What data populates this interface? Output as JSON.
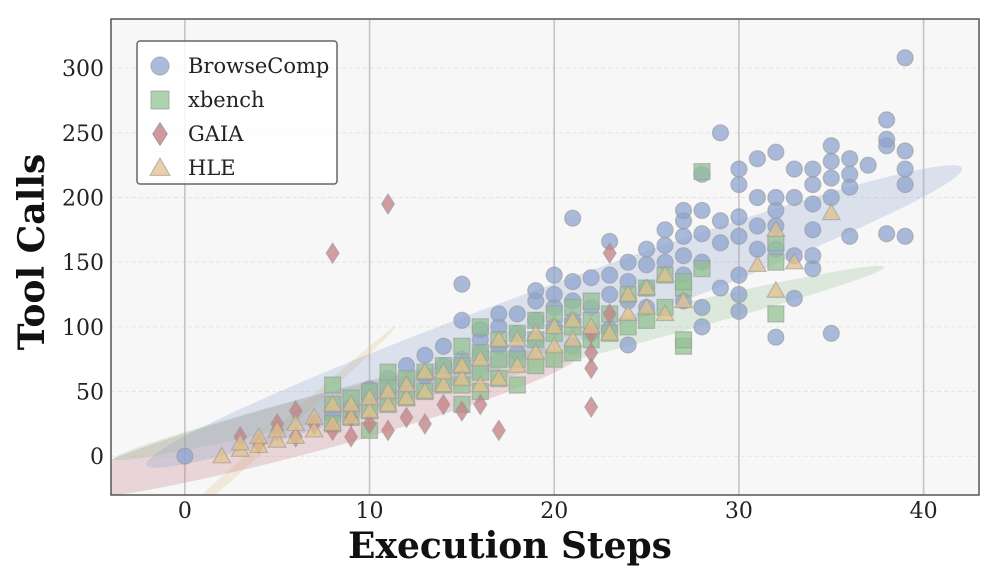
{
  "chart_data": {
    "type": "scatter",
    "xlabel": "Execution Steps",
    "ylabel": "Tool Calls",
    "xlim": [
      -4,
      43
    ],
    "ylim": [
      -30,
      338
    ],
    "xticks": [
      0,
      10,
      20,
      30,
      40
    ],
    "yticks": [
      0,
      50,
      100,
      150,
      200,
      250,
      300
    ],
    "grid": "vertical",
    "legend_position": "top-left",
    "series": [
      {
        "name": "BrowseComp",
        "marker": "circle",
        "color": "#8ea4cf",
        "ellipse": {
          "cx": 20,
          "cy": 108,
          "rx": 23.5,
          "ry": 24,
          "angle": 20
        },
        "points": [
          [
            0,
            0
          ],
          [
            8,
            32
          ],
          [
            9,
            38
          ],
          [
            10,
            45
          ],
          [
            10,
            52
          ],
          [
            11,
            48
          ],
          [
            11,
            60
          ],
          [
            12,
            55
          ],
          [
            12,
            70
          ],
          [
            13,
            62
          ],
          [
            13,
            78
          ],
          [
            14,
            70
          ],
          [
            14,
            85
          ],
          [
            15,
            75
          ],
          [
            15,
            105
          ],
          [
            15,
            133
          ],
          [
            16,
            80
          ],
          [
            16,
            90
          ],
          [
            16,
            98
          ],
          [
            17,
            85
          ],
          [
            17,
            100
          ],
          [
            17,
            110
          ],
          [
            18,
            80
          ],
          [
            18,
            95
          ],
          [
            18,
            110
          ],
          [
            19,
            90
          ],
          [
            19,
            105
          ],
          [
            19,
            120
          ],
          [
            19,
            128
          ],
          [
            20,
            100
          ],
          [
            20,
            115
          ],
          [
            20,
            125
          ],
          [
            20,
            140
          ],
          [
            21,
            85
          ],
          [
            21,
            105
          ],
          [
            21,
            120
          ],
          [
            21,
            135
          ],
          [
            21,
            184
          ],
          [
            22,
            95
          ],
          [
            22,
            115
          ],
          [
            22,
            138
          ],
          [
            23,
            98
          ],
          [
            23,
            125
          ],
          [
            23,
            140
          ],
          [
            23,
            166
          ],
          [
            24,
            86
          ],
          [
            24,
            120
          ],
          [
            24,
            135
          ],
          [
            24,
            150
          ],
          [
            25,
            115
          ],
          [
            25,
            130
          ],
          [
            25,
            148
          ],
          [
            25,
            160
          ],
          [
            26,
            150
          ],
          [
            26,
            163
          ],
          [
            26,
            175
          ],
          [
            27,
            120
          ],
          [
            27,
            140
          ],
          [
            27,
            155
          ],
          [
            27,
            170
          ],
          [
            27,
            182
          ],
          [
            27,
            190
          ],
          [
            28,
            100
          ],
          [
            28,
            115
          ],
          [
            28,
            150
          ],
          [
            28,
            172
          ],
          [
            28,
            190
          ],
          [
            28,
            218
          ],
          [
            29,
            130
          ],
          [
            29,
            165
          ],
          [
            29,
            182
          ],
          [
            29,
            250
          ],
          [
            30,
            112
          ],
          [
            30,
            125
          ],
          [
            30,
            140
          ],
          [
            30,
            170
          ],
          [
            30,
            185
          ],
          [
            30,
            210
          ],
          [
            30,
            222
          ],
          [
            31,
            160
          ],
          [
            31,
            178
          ],
          [
            31,
            200
          ],
          [
            31,
            230
          ],
          [
            32,
            92
          ],
          [
            32,
            160
          ],
          [
            32,
            178
          ],
          [
            32,
            190
          ],
          [
            32,
            200
          ],
          [
            32,
            235
          ],
          [
            33,
            122
          ],
          [
            33,
            155
          ],
          [
            33,
            200
          ],
          [
            33,
            222
          ],
          [
            34,
            145
          ],
          [
            34,
            155
          ],
          [
            34,
            175
          ],
          [
            34,
            195
          ],
          [
            34,
            210
          ],
          [
            34,
            222
          ],
          [
            35,
            95
          ],
          [
            35,
            200
          ],
          [
            35,
            215
          ],
          [
            35,
            228
          ],
          [
            35,
            240
          ],
          [
            36,
            170
          ],
          [
            36,
            208
          ],
          [
            36,
            218
          ],
          [
            36,
            230
          ],
          [
            37,
            225
          ],
          [
            38,
            172
          ],
          [
            38,
            240
          ],
          [
            38,
            245
          ],
          [
            38,
            260
          ],
          [
            39,
            170
          ],
          [
            39,
            210
          ],
          [
            39,
            222
          ],
          [
            39,
            236
          ],
          [
            39,
            308
          ]
        ]
      },
      {
        "name": "xbench",
        "marker": "square",
        "color": "#93c193",
        "ellipse": {
          "cx": 17,
          "cy": 72,
          "rx": 21.5,
          "ry": 12,
          "angle": 14
        },
        "points": [
          [
            8,
            25
          ],
          [
            8,
            40
          ],
          [
            8,
            55
          ],
          [
            9,
            30
          ],
          [
            9,
            45
          ],
          [
            10,
            20
          ],
          [
            10,
            35
          ],
          [
            10,
            50
          ],
          [
            11,
            40
          ],
          [
            11,
            55
          ],
          [
            11,
            65
          ],
          [
            12,
            45
          ],
          [
            12,
            60
          ],
          [
            13,
            50
          ],
          [
            13,
            65
          ],
          [
            14,
            55
          ],
          [
            14,
            70
          ],
          [
            15,
            40
          ],
          [
            15,
            55
          ],
          [
            15,
            70
          ],
          [
            15,
            85
          ],
          [
            16,
            50
          ],
          [
            16,
            65
          ],
          [
            16,
            80
          ],
          [
            16,
            100
          ],
          [
            17,
            60
          ],
          [
            17,
            75
          ],
          [
            17,
            90
          ],
          [
            18,
            55
          ],
          [
            18,
            75
          ],
          [
            18,
            95
          ],
          [
            19,
            70
          ],
          [
            19,
            90
          ],
          [
            19,
            105
          ],
          [
            20,
            75
          ],
          [
            20,
            95
          ],
          [
            20,
            110
          ],
          [
            21,
            80
          ],
          [
            21,
            100
          ],
          [
            21,
            115
          ],
          [
            22,
            90
          ],
          [
            22,
            105
          ],
          [
            22,
            120
          ],
          [
            23,
            95
          ],
          [
            23,
            110
          ],
          [
            24,
            100
          ],
          [
            24,
            125
          ],
          [
            25,
            105
          ],
          [
            25,
            130
          ],
          [
            26,
            115
          ],
          [
            26,
            140
          ],
          [
            27,
            85
          ],
          [
            27,
            90
          ],
          [
            27,
            130
          ],
          [
            27,
            135
          ],
          [
            28,
            145
          ],
          [
            28,
            220
          ],
          [
            32,
            110
          ],
          [
            32,
            150
          ],
          [
            32,
            165
          ]
        ]
      },
      {
        "name": "GAIA",
        "marker": "diamond",
        "color": "#c47f84",
        "ellipse": {
          "cx": 7,
          "cy": 25,
          "rx": 15,
          "ry": 21,
          "angle": 15
        },
        "points": [
          [
            3,
            15
          ],
          [
            4,
            10
          ],
          [
            5,
            20
          ],
          [
            5,
            25
          ],
          [
            6,
            15
          ],
          [
            6,
            35
          ],
          [
            7,
            25
          ],
          [
            8,
            20
          ],
          [
            8,
            157
          ],
          [
            9,
            15
          ],
          [
            9,
            30
          ],
          [
            10,
            25
          ],
          [
            11,
            20
          ],
          [
            11,
            195
          ],
          [
            12,
            30
          ],
          [
            13,
            25
          ],
          [
            14,
            40
          ],
          [
            15,
            35
          ],
          [
            16,
            40
          ],
          [
            17,
            20
          ],
          [
            22,
            38
          ],
          [
            22,
            68
          ],
          [
            22,
            80
          ],
          [
            22,
            95
          ],
          [
            23,
            110
          ],
          [
            23,
            157
          ]
        ]
      },
      {
        "name": "HLE",
        "marker": "triangle",
        "color": "#e0c18b",
        "ellipse": {
          "cx": 4,
          "cy": 5,
          "rx": 10,
          "ry": 3.8,
          "angle": 42
        },
        "points": [
          [
            2,
            0
          ],
          [
            3,
            5
          ],
          [
            3,
            10
          ],
          [
            4,
            8
          ],
          [
            4,
            15
          ],
          [
            5,
            12
          ],
          [
            5,
            20
          ],
          [
            6,
            15
          ],
          [
            6,
            25
          ],
          [
            7,
            20
          ],
          [
            7,
            30
          ],
          [
            8,
            25
          ],
          [
            8,
            40
          ],
          [
            9,
            30
          ],
          [
            9,
            40
          ],
          [
            10,
            35
          ],
          [
            10,
            45
          ],
          [
            11,
            40
          ],
          [
            11,
            50
          ],
          [
            12,
            45
          ],
          [
            12,
            55
          ],
          [
            13,
            50
          ],
          [
            13,
            65
          ],
          [
            14,
            55
          ],
          [
            14,
            65
          ],
          [
            15,
            60
          ],
          [
            15,
            70
          ],
          [
            16,
            55
          ],
          [
            16,
            75
          ],
          [
            17,
            60
          ],
          [
            17,
            90
          ],
          [
            18,
            70
          ],
          [
            18,
            90
          ],
          [
            19,
            80
          ],
          [
            19,
            95
          ],
          [
            20,
            85
          ],
          [
            20,
            100
          ],
          [
            21,
            90
          ],
          [
            21,
            105
          ],
          [
            22,
            100
          ],
          [
            23,
            95
          ],
          [
            24,
            110
          ],
          [
            24,
            125
          ],
          [
            25,
            115
          ],
          [
            25,
            130
          ],
          [
            26,
            110
          ],
          [
            26,
            140
          ],
          [
            27,
            120
          ],
          [
            31,
            148
          ],
          [
            32,
            128
          ],
          [
            32,
            175
          ],
          [
            33,
            150
          ],
          [
            35,
            188
          ]
        ]
      }
    ]
  }
}
